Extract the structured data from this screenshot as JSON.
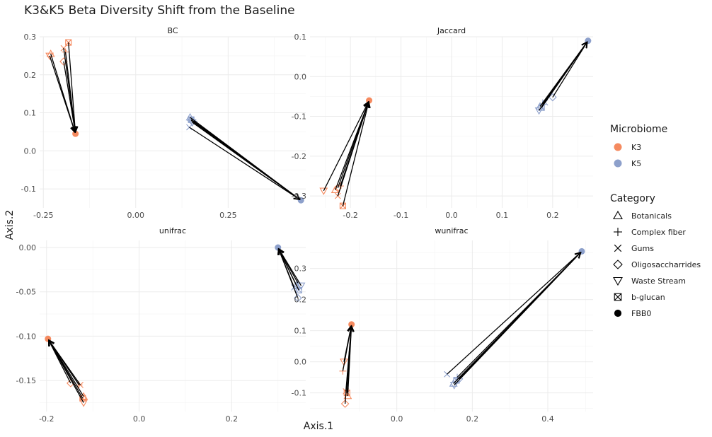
{
  "chart_data": {
    "type": "scatter",
    "title": "K3&K5 Beta Diversity Shift from the Baseline",
    "xlabel": "Axis.1",
    "ylabel": "Axis.2",
    "colors": {
      "K3": "#f58a5f",
      "K5": "#8da0cb",
      "arrow": "#000000"
    },
    "legend": {
      "position": "right",
      "microbiome": {
        "title": "Microbiome",
        "items": [
          "K3",
          "K5"
        ]
      },
      "category": {
        "title": "Category",
        "items": [
          {
            "label": "Botanicals",
            "shape": "triangle-up"
          },
          {
            "label": "Complex fiber",
            "shape": "plus"
          },
          {
            "label": "Gums",
            "shape": "cross"
          },
          {
            "label": "Oligosaccharrides",
            "shape": "diamond"
          },
          {
            "label": "Waste Stream",
            "shape": "triangle-down"
          },
          {
            "label": "b-glucan",
            "shape": "square-cross"
          },
          {
            "label": "FBB0",
            "shape": "filled-circle"
          }
        ]
      }
    },
    "panels": [
      {
        "name": "BC",
        "xlim": [
          -0.26,
          0.46
        ],
        "ylim": [
          -0.15,
          0.3
        ],
        "xticks": [
          -0.25,
          0.0,
          0.25
        ],
        "xticklabels": [
          "-0.25",
          "0.00",
          "0.25"
        ],
        "yticks": [
          -0.1,
          0.0,
          0.1,
          0.2,
          0.3
        ],
        "yticklabels": [
          "-0.1",
          "0.0",
          "0.1",
          "0.2",
          "0.3"
        ],
        "groups": [
          {
            "microbiome": "K3",
            "baseline": [
              -0.163,
              0.045
            ],
            "points": [
              {
                "category": "Botanicals",
                "x": -0.23,
                "y": 0.255
              },
              {
                "category": "Complex fiber",
                "x": -0.19,
                "y": 0.26
              },
              {
                "category": "Gums",
                "x": -0.195,
                "y": 0.27
              },
              {
                "category": "Oligosaccharrides",
                "x": -0.195,
                "y": 0.235
              },
              {
                "category": "Waste Stream",
                "x": -0.233,
                "y": 0.25
              },
              {
                "category": "b-glucan",
                "x": -0.182,
                "y": 0.285
              }
            ]
          },
          {
            "microbiome": "K5",
            "baseline": [
              0.447,
              -0.13
            ],
            "points": [
              {
                "category": "Botanicals",
                "x": 0.147,
                "y": 0.088
              },
              {
                "category": "Complex fiber",
                "x": 0.157,
                "y": 0.078
              },
              {
                "category": "Gums",
                "x": 0.145,
                "y": 0.062
              },
              {
                "category": "Oligosaccharrides",
                "x": 0.15,
                "y": 0.08
              },
              {
                "category": "Waste Stream",
                "x": 0.153,
                "y": 0.075
              },
              {
                "category": "b-glucan",
                "x": 0.15,
                "y": 0.082
              }
            ]
          }
        ]
      },
      {
        "name": "Jaccard",
        "xlim": [
          -0.28,
          0.28
        ],
        "ylim": [
          -0.33,
          0.1
        ],
        "xticks": [
          -0.2,
          -0.1,
          0.0,
          0.1,
          0.2
        ],
        "xticklabels": [
          "-0.2",
          "-0.1",
          "0.0",
          "0.1",
          "0.2"
        ],
        "yticks": [
          -0.3,
          -0.2,
          -0.1,
          0.0,
          0.1
        ],
        "yticklabels": [
          "-0.3",
          "-0.2",
          "-0.1",
          "0.0",
          "0.1"
        ],
        "groups": [
          {
            "microbiome": "K3",
            "baseline": [
              -0.163,
              -0.06
            ],
            "points": [
              {
                "category": "Botanicals",
                "x": -0.23,
                "y": -0.285
              },
              {
                "category": "Complex fiber",
                "x": -0.22,
                "y": -0.275
              },
              {
                "category": "Gums",
                "x": -0.225,
                "y": -0.3
              },
              {
                "category": "Oligosaccharrides",
                "x": -0.225,
                "y": -0.28
              },
              {
                "category": "Waste Stream",
                "x": -0.253,
                "y": -0.287
              },
              {
                "category": "b-glucan",
                "x": -0.215,
                "y": -0.325
              }
            ]
          },
          {
            "microbiome": "K5",
            "baseline": [
              0.27,
              0.09
            ],
            "points": [
              {
                "category": "Botanicals",
                "x": 0.175,
                "y": -0.075
              },
              {
                "category": "Complex fiber",
                "x": 0.18,
                "y": -0.07
              },
              {
                "category": "Gums",
                "x": 0.185,
                "y": -0.065
              },
              {
                "category": "Oligosaccharrides",
                "x": 0.2,
                "y": -0.052
              },
              {
                "category": "Waste Stream",
                "x": 0.173,
                "y": -0.085
              },
              {
                "category": "b-glucan",
                "x": 0.178,
                "y": -0.078
              }
            ]
          }
        ]
      },
      {
        "name": "unifrac",
        "xlim": [
          -0.215,
          0.36
        ],
        "ylim": [
          -0.185,
          0.008
        ],
        "xticks": [
          -0.2,
          0.0,
          0.2
        ],
        "xticklabels": [
          "-0.2",
          "0.0",
          "0.2"
        ],
        "yticks": [
          -0.15,
          -0.1,
          -0.05,
          0.0
        ],
        "yticklabels": [
          "-0.15",
          "-0.10",
          "-0.05",
          "0.00"
        ],
        "groups": [
          {
            "microbiome": "K3",
            "baseline": [
              -0.197,
              -0.103
            ],
            "points": [
              {
                "category": "Botanicals",
                "x": -0.12,
                "y": -0.168
              },
              {
                "category": "Complex fiber",
                "x": -0.13,
                "y": -0.155
              },
              {
                "category": "Gums",
                "x": -0.127,
                "y": -0.155
              },
              {
                "category": "Oligosaccharrides",
                "x": -0.148,
                "y": -0.153
              },
              {
                "category": "Waste Stream",
                "x": -0.12,
                "y": -0.175
              },
              {
                "category": "b-glucan",
                "x": -0.122,
                "y": -0.17
              }
            ]
          },
          {
            "microbiome": "K5",
            "baseline": [
              0.3,
              0.0
            ],
            "points": [
              {
                "category": "Botanicals",
                "x": 0.34,
                "y": -0.043
              },
              {
                "category": "Complex fiber",
                "x": 0.343,
                "y": -0.04
              },
              {
                "category": "Gums",
                "x": 0.335,
                "y": -0.045
              },
              {
                "category": "Oligosaccharrides",
                "x": 0.343,
                "y": -0.057
              },
              {
                "category": "Waste Stream",
                "x": 0.35,
                "y": -0.043
              },
              {
                "category": "b-glucan",
                "x": 0.345,
                "y": -0.048
              }
            ]
          }
        ]
      },
      {
        "name": "wunifrac",
        "xlim": [
          -0.23,
          0.52
        ],
        "ylim": [
          -0.16,
          0.39
        ],
        "xticks": [
          0.0,
          0.2,
          0.4
        ],
        "xticklabels": [
          "0.0",
          "0.2",
          "0.4"
        ],
        "yticks": [
          -0.1,
          0.0,
          0.1,
          0.2,
          0.3
        ],
        "yticklabels": [
          "-0.1",
          "0.0",
          "0.1",
          "0.2",
          "0.3"
        ],
        "groups": [
          {
            "microbiome": "K3",
            "baseline": [
              -0.12,
              0.12
            ],
            "points": [
              {
                "category": "Botanicals",
                "x": -0.13,
                "y": -0.11
              },
              {
                "category": "Complex fiber",
                "x": -0.143,
                "y": -0.03
              },
              {
                "category": "Gums",
                "x": -0.135,
                "y": -0.095
              },
              {
                "category": "Oligosaccharrides",
                "x": -0.137,
                "y": -0.135
              },
              {
                "category": "Waste Stream",
                "x": -0.14,
                "y": 0.0
              },
              {
                "category": "b-glucan",
                "x": -0.132,
                "y": -0.1
              }
            ]
          },
          {
            "microbiome": "K5",
            "baseline": [
              0.49,
              0.355
            ],
            "points": [
              {
                "category": "Botanicals",
                "x": 0.15,
                "y": -0.07
              },
              {
                "category": "Complex fiber",
                "x": 0.16,
                "y": -0.05
              },
              {
                "category": "Gums",
                "x": 0.133,
                "y": -0.04
              },
              {
                "category": "Oligosaccharrides",
                "x": 0.165,
                "y": -0.055
              },
              {
                "category": "Waste Stream",
                "x": 0.152,
                "y": -0.075
              },
              {
                "category": "b-glucan",
                "x": 0.158,
                "y": -0.06
              }
            ]
          }
        ]
      }
    ]
  }
}
